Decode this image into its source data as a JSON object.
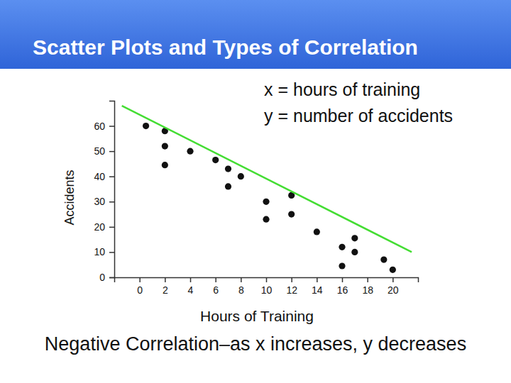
{
  "chart_data": {
    "type": "scatter",
    "title": "Scatter Plots and Types of Correlation",
    "annotations": [
      "x = hours of training",
      "y = number of accidents",
      "Negative Correlation–as x increases, y decreases"
    ],
    "x_label": "Hours of Training",
    "y_label": "Accidents",
    "xlim": [
      -2,
      22
    ],
    "xticks": [
      0,
      2,
      4,
      6,
      8,
      10,
      12,
      14,
      16,
      18,
      20
    ],
    "ylim": [
      0,
      70
    ],
    "yticks": [
      0,
      10,
      20,
      30,
      40,
      50,
      60
    ],
    "grid": false,
    "series": [
      {
        "type": "scatter",
        "color": "#111111",
        "marker": "circle",
        "x": [
          0.5,
          2,
          2,
          2,
          4,
          6,
          7,
          7,
          8,
          10,
          10,
          12,
          12,
          14,
          16,
          16,
          17,
          17,
          19.3,
          20
        ],
        "values": [
          60,
          58,
          52,
          44.5,
          50,
          46.5,
          43,
          36,
          40,
          30,
          23,
          32.5,
          25,
          18,
          12,
          4.5,
          15.5,
          10,
          7,
          3
        ]
      },
      {
        "type": "line",
        "color": "#44dd33",
        "line_style": "solid",
        "x": [
          -1.4,
          21.5
        ],
        "values": [
          68,
          10
        ]
      }
    ]
  }
}
